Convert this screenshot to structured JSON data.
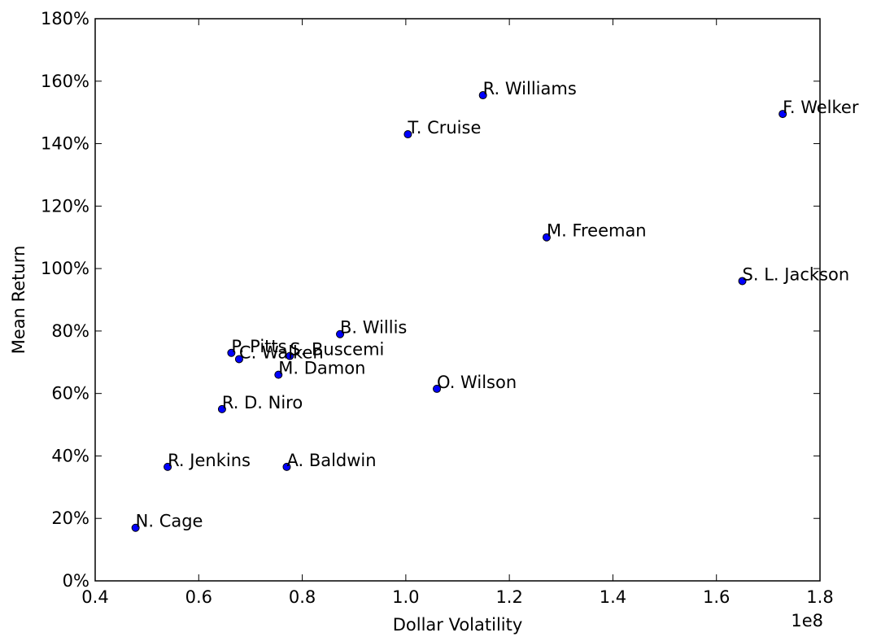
{
  "chart_data": {
    "type": "scatter",
    "title": "",
    "xlabel": "Dollar Volatility",
    "ylabel": "Mean Return",
    "x_offset_label": "1e8",
    "xlim": [
      0.4,
      1.8
    ],
    "ylim": [
      0,
      180
    ],
    "x_ticks": [
      "0.4",
      "0.6",
      "0.8",
      "1.0",
      "1.2",
      "1.4",
      "1.6",
      "1.8"
    ],
    "y_ticks": [
      "0%",
      "20%",
      "40%",
      "60%",
      "80%",
      "100%",
      "120%",
      "140%",
      "160%",
      "180%"
    ],
    "grid": false,
    "marker_color": "#0000ff",
    "points": [
      {
        "label": "N. Cage",
        "x": 0.478,
        "y": 17
      },
      {
        "label": "R. Jenkins",
        "x": 0.54,
        "y": 36.5
      },
      {
        "label": "A. Baldwin",
        "x": 0.77,
        "y": 36.5
      },
      {
        "label": "R. D. Niro",
        "x": 0.645,
        "y": 55
      },
      {
        "label": "M. Damon",
        "x": 0.754,
        "y": 66
      },
      {
        "label": "P. Pitts",
        "x": 0.663,
        "y": 73
      },
      {
        "label": "C. Walken",
        "x": 0.678,
        "y": 71
      },
      {
        "label": "S. Buscemi",
        "x": 0.776,
        "y": 72
      },
      {
        "label": "B. Willis",
        "x": 0.873,
        "y": 79
      },
      {
        "label": "O. Wilson",
        "x": 1.06,
        "y": 61.5
      },
      {
        "label": "T. Cruise",
        "x": 1.004,
        "y": 143
      },
      {
        "label": "R. Williams",
        "x": 1.149,
        "y": 155.5
      },
      {
        "label": "M. Freeman",
        "x": 1.272,
        "y": 110
      },
      {
        "label": "S. L. Jackson",
        "x": 1.65,
        "y": 96
      },
      {
        "label": "F. Welker",
        "x": 1.728,
        "y": 149.5
      }
    ]
  }
}
